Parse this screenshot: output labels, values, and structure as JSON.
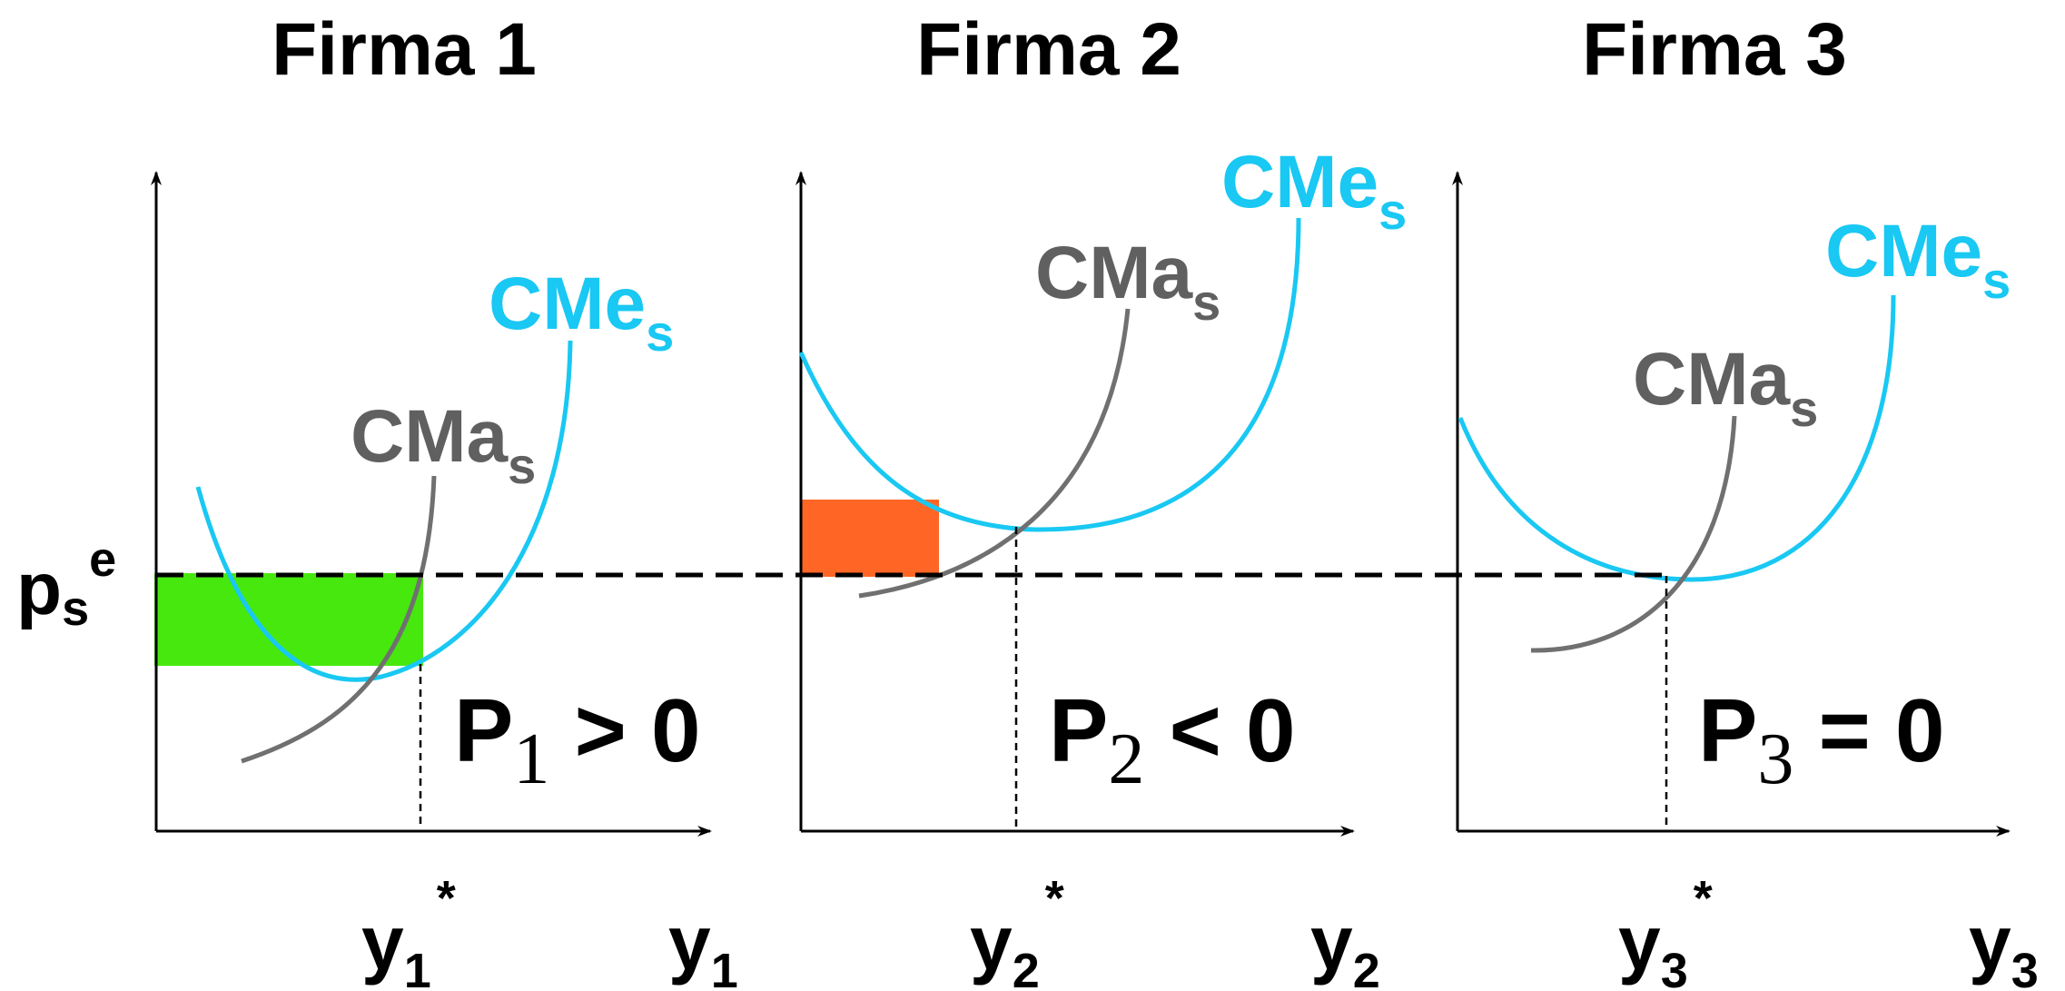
{
  "colors": {
    "cme": "#19c8f3",
    "cma": "#707070",
    "axis": "#000000",
    "profit": "#47e80e",
    "loss": "#ff6626"
  },
  "price_label": {
    "base": "p",
    "sub": "s",
    "sup": "e"
  },
  "panels": [
    {
      "title": "Firma 1",
      "cme_label": {
        "base": "CMe",
        "sub": "s"
      },
      "cma_label": {
        "base": "CMa",
        "sub": "s"
      },
      "profit_label": {
        "base": "P",
        "sub": "1",
        "rest": " > 0"
      },
      "opt_label": {
        "base": "y",
        "sub": "1",
        "sup": "*"
      },
      "axis_label": {
        "base": "y",
        "sub": "1"
      },
      "area": "profit"
    },
    {
      "title": "Firma 2",
      "cme_label": {
        "base": "CMe",
        "sub": "s"
      },
      "cma_label": {
        "base": "CMa",
        "sub": "s"
      },
      "profit_label": {
        "base": "P",
        "sub": "2",
        "rest": " < 0"
      },
      "opt_label": {
        "base": "y",
        "sub": "2",
        "sup": "*"
      },
      "axis_label": {
        "base": "y",
        "sub": "2"
      },
      "area": "loss"
    },
    {
      "title": "Firma 3",
      "cme_label": {
        "base": "CMe",
        "sub": "s"
      },
      "cma_label": {
        "base": "CMa",
        "sub": "s"
      },
      "profit_label": {
        "base": "P",
        "sub": "3",
        "rest": " = 0"
      },
      "opt_label": {
        "base": "y",
        "sub": "3",
        "sup": "*"
      },
      "axis_label": {
        "base": "y",
        "sub": "3"
      },
      "area": "zero"
    }
  ]
}
